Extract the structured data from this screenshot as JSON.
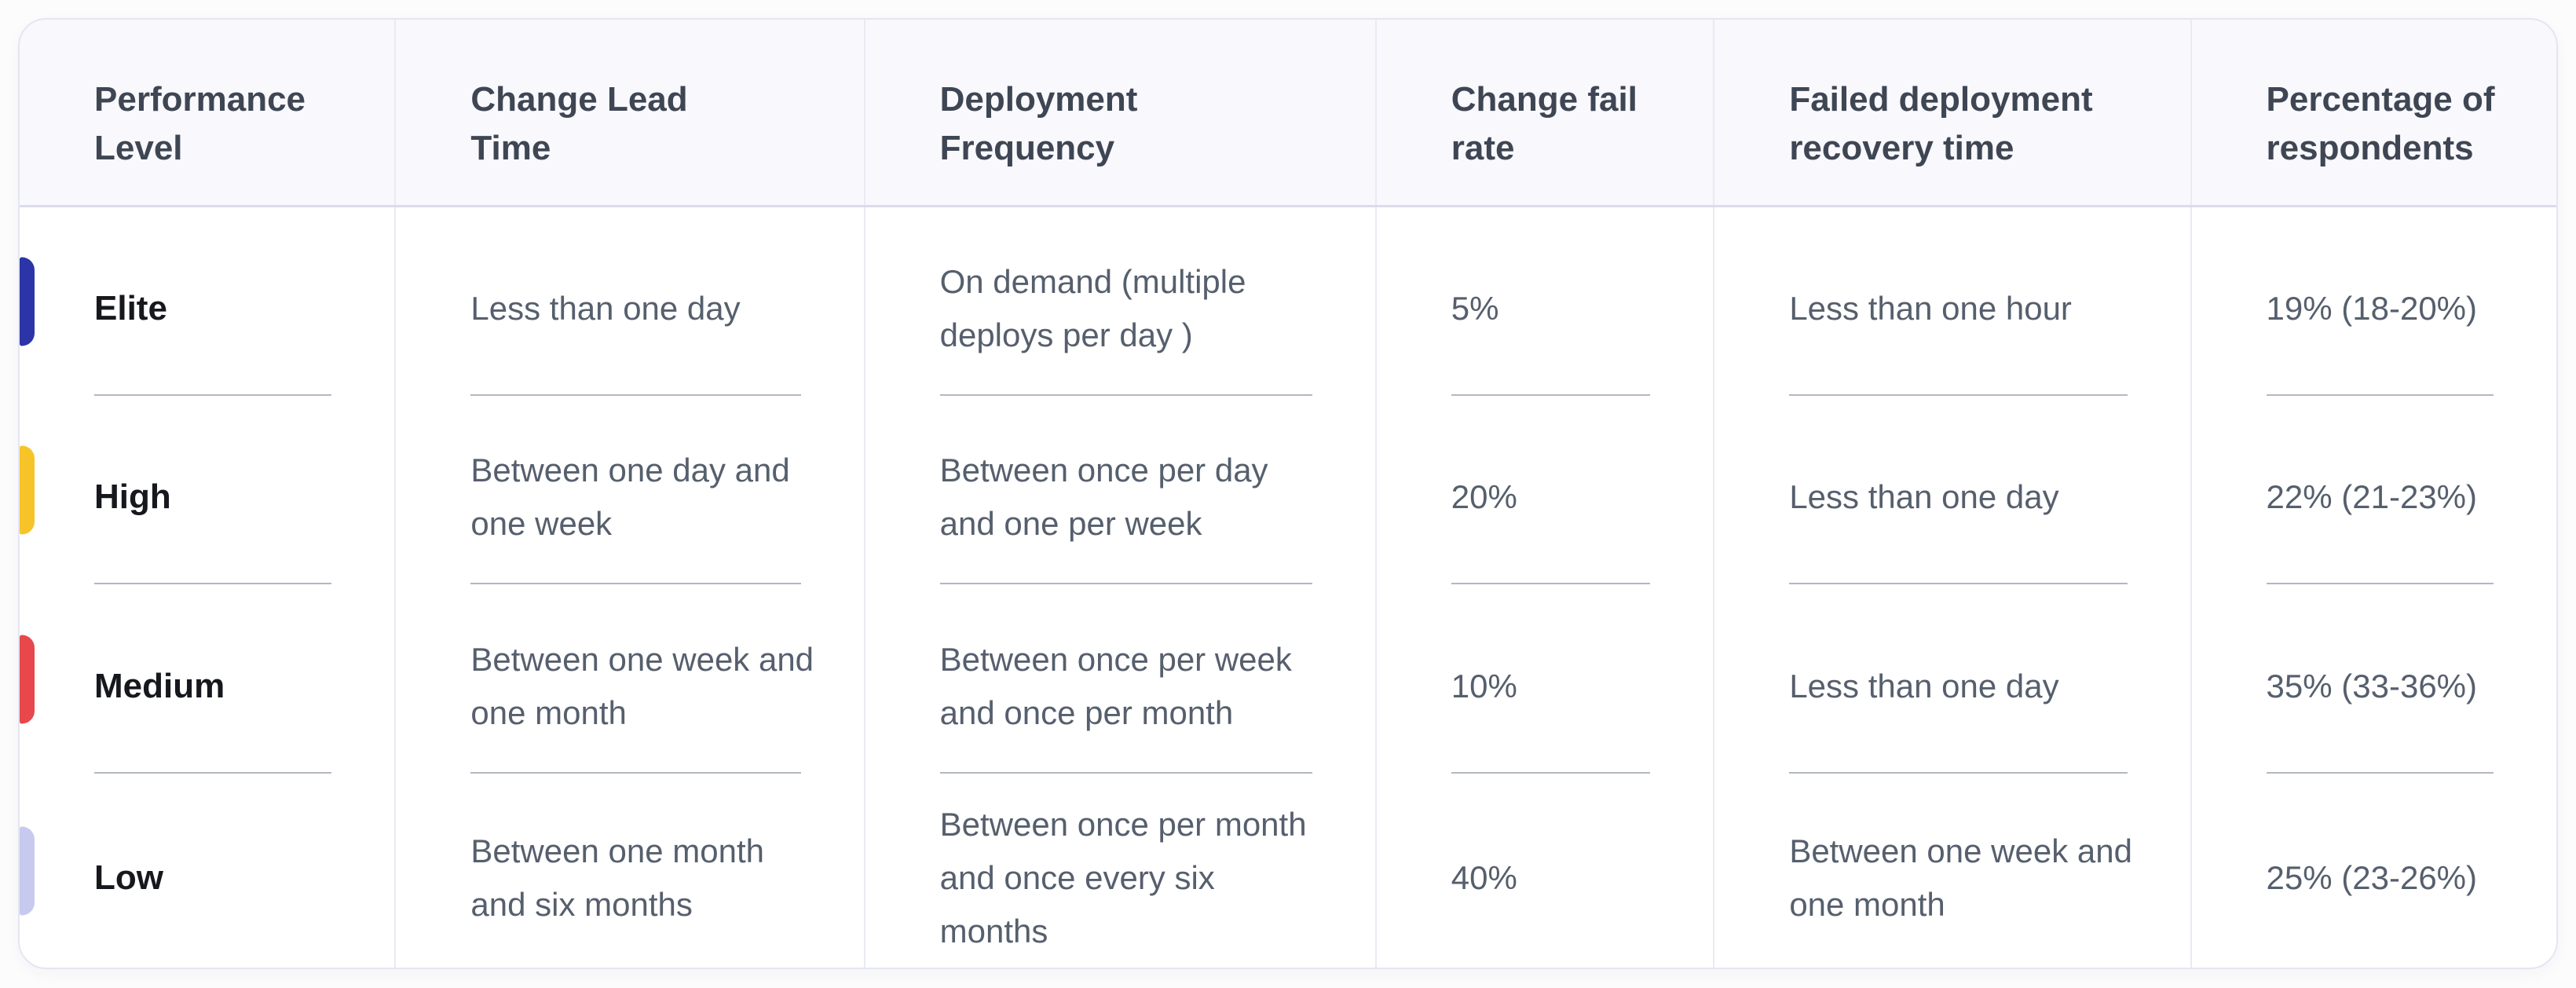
{
  "chart_data": {
    "type": "table",
    "columns": [
      "Performance Level",
      "Change Lead Time",
      "Deployment Frequency",
      "Change fail rate",
      "Failed deployment recovery time",
      "Percentage of respondents"
    ],
    "rows": [
      {
        "performance_level": "Elite",
        "accent_color": "#2b35a8",
        "change_lead_time": "Less than one day",
        "deployment_frequency": "On demand (multiple deploys per day )",
        "change_fail_rate": "5%",
        "failed_deployment_recovery_time": "Less than one hour",
        "percentage_of_respondents": "19% (18-20%)"
      },
      {
        "performance_level": "High",
        "accent_color": "#f6c428",
        "change_lead_time": "Between one day and one week",
        "deployment_frequency": "Between once per day and one per week",
        "change_fail_rate": "20%",
        "failed_deployment_recovery_time": "Less than one day",
        "percentage_of_respondents": "22% (21-23%)"
      },
      {
        "performance_level": "Medium",
        "accent_color": "#e8474b",
        "change_lead_time": "Between one week and one month",
        "deployment_frequency": "Between once per week and once per month",
        "change_fail_rate": "10%",
        "failed_deployment_recovery_time": "Less than one day",
        "percentage_of_respondents": "35% (33-36%)"
      },
      {
        "performance_level": "Low",
        "accent_color": "#c7caee",
        "change_lead_time": "Between one month and six months",
        "deployment_frequency": "Between once per month and once every six months",
        "change_fail_rate": "40%",
        "failed_deployment_recovery_time": "Between one week and one month",
        "percentage_of_respondents": "25% (23-26%)"
      }
    ],
    "theme": {
      "header_bg": "#f8f8fd",
      "card_border": "#e4e6f1",
      "column_divider": "#e9eaf4",
      "row_separator": "#b3b7c2",
      "header_text": "#3f4653",
      "body_text": "#565f6d",
      "level_text": "#16181d"
    }
  }
}
